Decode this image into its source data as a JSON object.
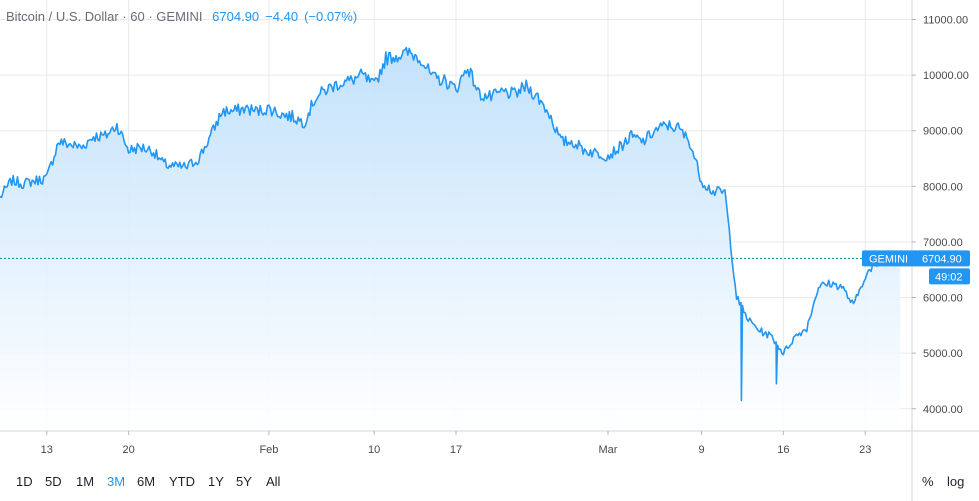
{
  "header": {
    "symbol": "Bitcoin / U.S. Dollar",
    "interval": "60",
    "exchange": "GEMINI",
    "last": "6704.90",
    "change": "−4.40",
    "change_pct": "(−0.07%)"
  },
  "price_tag": {
    "exchange": "GEMINI",
    "price": "6704.90",
    "countdown": "49:02"
  },
  "range_buttons": [
    "1D",
    "5D",
    "1M",
    "3M",
    "6M",
    "YTD",
    "1Y",
    "5Y",
    "All"
  ],
  "active_range": "3M",
  "scale_buttons": {
    "percent": "%",
    "log": "log"
  },
  "colors": {
    "line": "#2196f3",
    "fill_top": "#bfe0fb",
    "fill_bottom": "#ffffff",
    "grid": "#e8e9ec",
    "price_tag": "#2196f3"
  },
  "chart_data": {
    "type": "area",
    "title": "Bitcoin / U.S. Dollar · 60 · GEMINI",
    "x_ticks": [
      "13",
      "20",
      "Feb",
      "10",
      "17",
      "Mar",
      "9",
      "16",
      "23"
    ],
    "y_ticks": [
      "11000.00",
      "10000.00",
      "9000.00",
      "8000.00",
      "7000.00",
      "6000.00",
      "5000.00",
      "4000.00"
    ],
    "ylim": [
      3600,
      11350
    ],
    "xlim": [
      "2020-01-09",
      "2020-03-27"
    ],
    "grid": true,
    "last_price": 6704.9,
    "x": [
      "2020-01-09",
      "2020-01-10",
      "2020-01-11",
      "2020-01-12",
      "2020-01-13",
      "2020-01-14",
      "2020-01-15",
      "2020-01-16",
      "2020-01-17",
      "2020-01-18",
      "2020-01-19",
      "2020-01-20",
      "2020-01-21",
      "2020-01-22",
      "2020-01-23",
      "2020-01-24",
      "2020-01-25",
      "2020-01-26",
      "2020-01-27",
      "2020-01-28",
      "2020-01-29",
      "2020-01-30",
      "2020-01-31",
      "2020-02-01",
      "2020-02-02",
      "2020-02-03",
      "2020-02-04",
      "2020-02-05",
      "2020-02-06",
      "2020-02-07",
      "2020-02-08",
      "2020-02-09",
      "2020-02-10",
      "2020-02-11",
      "2020-02-12",
      "2020-02-13",
      "2020-02-14",
      "2020-02-15",
      "2020-02-16",
      "2020-02-17",
      "2020-02-18",
      "2020-02-19",
      "2020-02-20",
      "2020-02-21",
      "2020-02-22",
      "2020-02-23",
      "2020-02-24",
      "2020-02-25",
      "2020-02-26",
      "2020-02-27",
      "2020-02-28",
      "2020-02-29",
      "2020-03-01",
      "2020-03-02",
      "2020-03-03",
      "2020-03-04",
      "2020-03-05",
      "2020-03-06",
      "2020-03-07",
      "2020-03-08",
      "2020-03-09",
      "2020-03-10",
      "2020-03-11",
      "2020-03-12",
      "2020-03-13",
      "2020-03-14",
      "2020-03-15",
      "2020-03-16",
      "2020-03-17",
      "2020-03-18",
      "2020-03-19",
      "2020-03-20",
      "2020-03-21",
      "2020-03-22",
      "2020-03-23",
      "2020-03-24",
      "2020-03-25",
      "2020-03-26"
    ],
    "y": [
      7800,
      8100,
      8050,
      8100,
      8150,
      8800,
      8750,
      8700,
      8900,
      8900,
      9100,
      8650,
      8700,
      8650,
      8400,
      8350,
      8350,
      8500,
      8900,
      9350,
      9350,
      9400,
      9350,
      9400,
      9300,
      9250,
      9150,
      9600,
      9750,
      9850,
      9900,
      10000,
      9800,
      10300,
      10350,
      10400,
      10300,
      9950,
      9900,
      9750,
      10150,
      9650,
      9600,
      9700,
      9650,
      9800,
      9600,
      9300,
      8800,
      8800,
      8650,
      8600,
      8550,
      8700,
      8900,
      8800,
      9000,
      9100,
      9050,
      8800,
      8100,
      7900,
      7900,
      6000,
      5600,
      5400,
      5300,
      5000,
      5300,
      5450,
      6200,
      6250,
      6200,
      5850,
      6400,
      6600,
      6750,
      6704.9
    ],
    "lows": [
      {
        "x": "2020-03-13",
        "y": 4150
      },
      {
        "x": "2020-03-16",
        "y": 4450
      }
    ]
  }
}
